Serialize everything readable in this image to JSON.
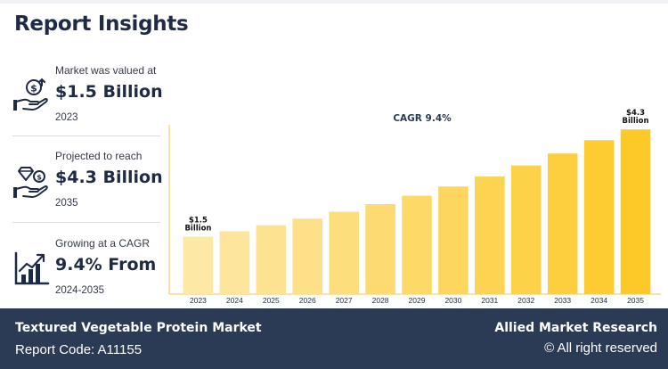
{
  "header": {
    "title": "Report Insights"
  },
  "stats": [
    {
      "label": "Market was valued at",
      "value": "$1.5 Billion",
      "sub": "2023",
      "icon": "money-hand-icon"
    },
    {
      "label": "Projected to reach",
      "value": "$4.3 Billion",
      "sub": "2035",
      "icon": "diamond-hand-icon"
    },
    {
      "label": "Growing at a CAGR",
      "value": "9.4% From",
      "sub": "2024-2035",
      "icon": "growth-chart-icon"
    }
  ],
  "chart_data": {
    "type": "bar",
    "title": "CAGR 9.4%",
    "categories": [
      "2023",
      "2024",
      "2025",
      "2026",
      "2027",
      "2028",
      "2029",
      "2030",
      "2031",
      "2032",
      "2033",
      "2034",
      "2035"
    ],
    "values": [
      1.5,
      1.64,
      1.8,
      1.97,
      2.15,
      2.35,
      2.57,
      2.81,
      3.07,
      3.36,
      3.67,
      4.02,
      4.3
    ],
    "ylim": [
      0,
      4.7
    ],
    "annotations": [
      {
        "category": "2023",
        "line1": "$1.5",
        "line2": "Billion"
      },
      {
        "category": "2035",
        "line1": "$4.3",
        "line2": "Billion"
      }
    ],
    "grid": false,
    "colors": {
      "start": "#fde8a6",
      "end": "#fdc928",
      "axis": "#f3dc8e"
    }
  },
  "footer": {
    "market": "Textured Vegetable Protein Market",
    "code": "Report Code: A11155",
    "brand": "Allied Market Research",
    "rights": "© All right reserved"
  }
}
